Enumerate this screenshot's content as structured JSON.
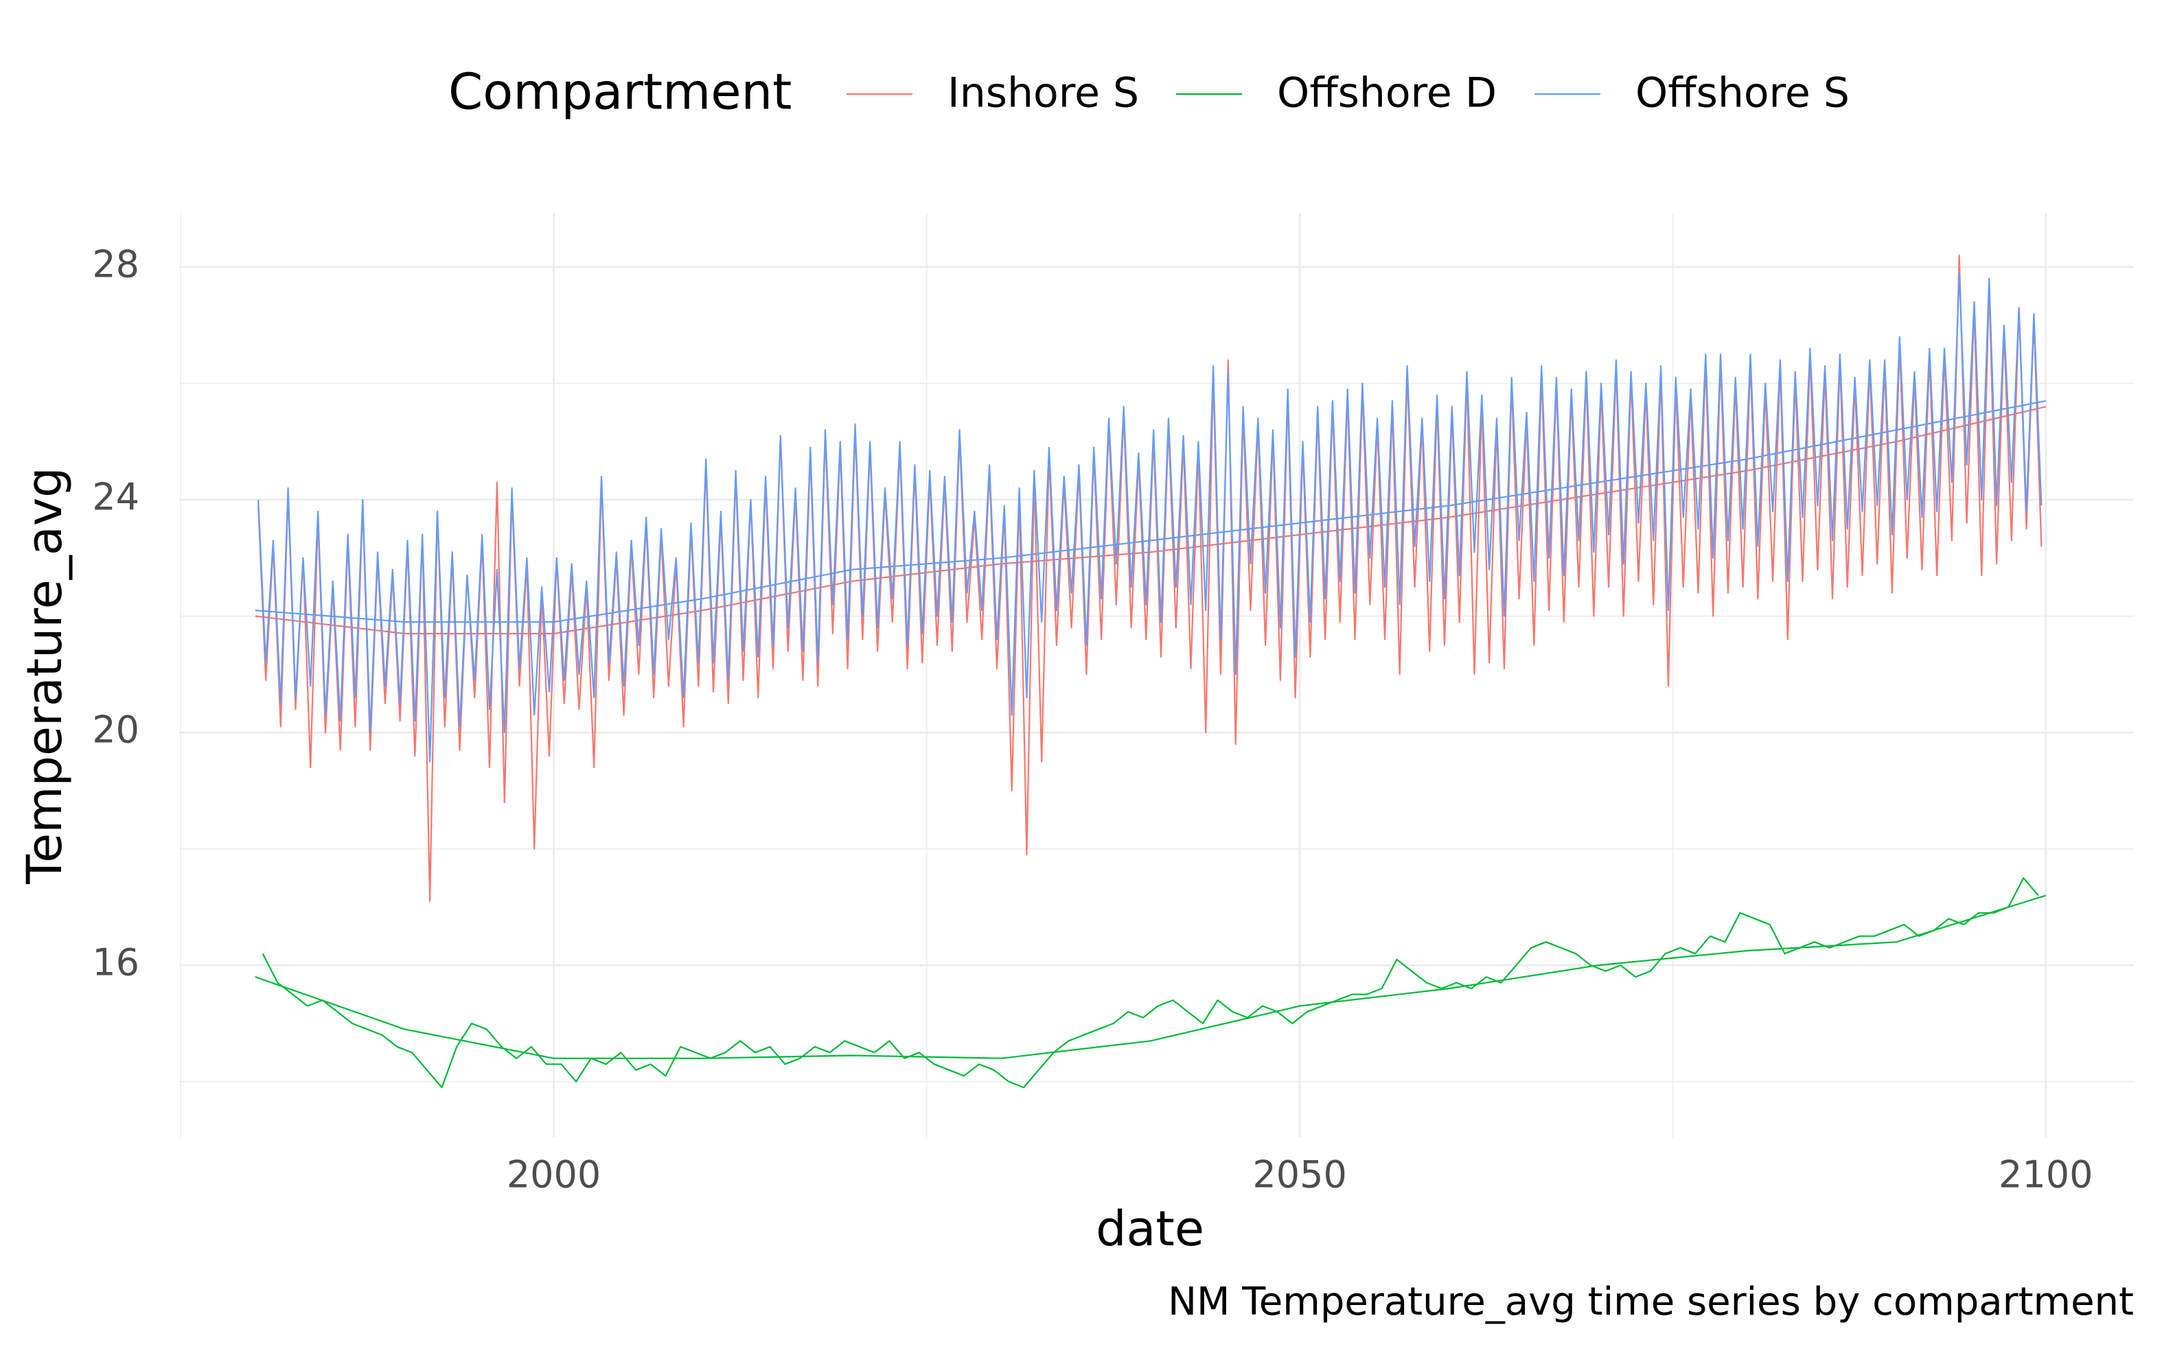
{
  "chart_data": {
    "type": "line",
    "legend_title": "Compartment",
    "xlabel": "date",
    "ylabel": "Temperature_avg",
    "caption": "NM Temperature_avg time series by compartment",
    "xlim": [
      1974.9,
      2105.9
    ],
    "ylim": [
      13.04,
      28.92
    ],
    "xticks": [
      2000,
      2050,
      2100
    ],
    "yticks": [
      16,
      20,
      24,
      28
    ],
    "minor_xticks": [
      1975,
      2025,
      2075
    ],
    "minor_yticks": [
      14,
      18,
      22,
      26
    ],
    "grid": true,
    "legend_position": "top",
    "x": [
      1980.2,
      1980.7,
      1981.2,
      1981.7,
      1982.2,
      1982.7,
      1983.2,
      1983.7,
      1984.2,
      1984.7,
      1985.2,
      1985.7,
      1986.2,
      1986.7,
      1987.2,
      1987.7,
      1988.2,
      1988.7,
      1989.2,
      1989.7,
      1990.2,
      1990.7,
      1991.2,
      1991.7,
      1992.2,
      1992.7,
      1993.2,
      1993.7,
      1994.2,
      1994.7,
      1995.2,
      1995.7,
      1996.2,
      1996.7,
      1997.2,
      1997.7,
      1998.2,
      1998.7,
      1999.2,
      1999.7,
      2000.2,
      2000.7,
      2001.2,
      2001.7,
      2002.2,
      2002.7,
      2003.2,
      2003.7,
      2004.2,
      2004.7,
      2005.2,
      2005.7,
      2006.2,
      2006.7,
      2007.2,
      2007.7,
      2008.2,
      2008.7,
      2009.2,
      2009.7,
      2010.2,
      2010.7,
      2011.2,
      2011.7,
      2012.2,
      2012.7,
      2013.2,
      2013.7,
      2014.2,
      2014.7,
      2015.2,
      2015.7,
      2016.2,
      2016.7,
      2017.2,
      2017.7,
      2018.2,
      2018.7,
      2019.2,
      2019.7,
      2020.2,
      2020.7,
      2021.2,
      2021.7,
      2022.2,
      2022.7,
      2023.2,
      2023.7,
      2024.2,
      2024.7,
      2025.2,
      2025.7,
      2026.2,
      2026.7,
      2027.2,
      2027.7,
      2028.2,
      2028.7,
      2029.2,
      2029.7,
      2030.2,
      2030.7,
      2031.2,
      2031.7,
      2032.2,
      2032.7,
      2033.2,
      2033.7,
      2034.2,
      2034.7,
      2035.2,
      2035.7,
      2036.2,
      2036.7,
      2037.2,
      2037.7,
      2038.2,
      2038.7,
      2039.2,
      2039.7,
      2040.2,
      2040.7,
      2041.2,
      2041.7,
      2042.2,
      2042.7,
      2043.2,
      2043.7,
      2044.2,
      2044.7,
      2045.2,
      2045.7,
      2046.2,
      2046.7,
      2047.2,
      2047.7,
      2048.2,
      2048.7,
      2049.2,
      2049.7,
      2050.2,
      2050.7,
      2051.2,
      2051.7,
      2052.2,
      2052.7,
      2053.2,
      2053.7,
      2054.2,
      2054.7,
      2055.2,
      2055.7,
      2056.2,
      2056.7,
      2057.2,
      2057.7,
      2058.2,
      2058.7,
      2059.2,
      2059.7,
      2060.2,
      2060.7,
      2061.2,
      2061.7,
      2062.2,
      2062.7,
      2063.2,
      2063.7,
      2064.2,
      2064.7,
      2065.2,
      2065.7,
      2066.2,
      2066.7,
      2067.2,
      2067.7,
      2068.2,
      2068.7,
      2069.2,
      2069.7,
      2070.2,
      2070.7,
      2071.2,
      2071.7,
      2072.2,
      2072.7,
      2073.2,
      2073.7,
      2074.2,
      2074.7,
      2075.2,
      2075.7,
      2076.2,
      2076.7,
      2077.2,
      2077.7,
      2078.2,
      2078.7,
      2079.2,
      2079.7,
      2080.2,
      2080.7,
      2081.2,
      2081.7,
      2082.2,
      2082.7,
      2083.2,
      2083.7,
      2084.2,
      2084.7,
      2085.2,
      2085.7,
      2086.2,
      2086.7,
      2087.2,
      2087.7,
      2088.2,
      2088.7,
      2089.2,
      2089.7,
      2090.2,
      2090.7,
      2091.2,
      2091.7,
      2092.2,
      2092.7,
      2093.2,
      2093.7,
      2094.2,
      2094.7,
      2095.2,
      2095.7,
      2096.2,
      2096.7,
      2097.2,
      2097.7,
      2098.2,
      2098.7,
      2099.2,
      2099.7
    ],
    "trend_x": [
      1980,
      1990,
      2000,
      2010,
      2020,
      2030,
      2040,
      2050,
      2060,
      2070,
      2080,
      2090,
      2100
    ],
    "series": [
      {
        "name": "Inshore S",
        "color": "#F8766D",
        "values": [
          23.9,
          20.9,
          23.2,
          20.1,
          24.1,
          20.4,
          23.0,
          19.4,
          23.7,
          20.0,
          22.5,
          19.7,
          23.3,
          20.1,
          23.9,
          19.7,
          23.0,
          20.5,
          22.7,
          20.2,
          23.2,
          19.6,
          23.4,
          17.1,
          23.8,
          20.1,
          23.0,
          19.7,
          22.7,
          20.6,
          23.3,
          19.4,
          24.3,
          18.8,
          24.1,
          20.8,
          22.9,
          18.0,
          22.4,
          19.6,
          23.0,
          20.5,
          22.8,
          20.4,
          22.5,
          19.4,
          24.3,
          20.9,
          23.0,
          20.3,
          23.2,
          21.0,
          23.6,
          20.6,
          23.4,
          20.8,
          22.9,
          20.1,
          23.5,
          20.8,
          24.6,
          20.7,
          23.7,
          20.5,
          24.4,
          20.9,
          24.0,
          20.6,
          24.3,
          21.1,
          25.1,
          21.4,
          24.1,
          20.9,
          24.8,
          20.8,
          25.1,
          21.7,
          24.9,
          21.1,
          25.2,
          21.6,
          24.9,
          21.4,
          24.1,
          21.9,
          24.9,
          21.1,
          24.5,
          21.2,
          24.4,
          21.5,
          24.3,
          21.4,
          25.1,
          21.9,
          23.7,
          21.6,
          24.5,
          21.1,
          23.8,
          19.0,
          24.1,
          17.9,
          24.4,
          19.5,
          24.8,
          21.5,
          24.3,
          21.8,
          24.5,
          21.0,
          24.8,
          21.6,
          25.3,
          22.2,
          25.5,
          21.8,
          24.7,
          21.6,
          25.1,
          21.3,
          25.3,
          21.8,
          25.0,
          21.1,
          24.9,
          20.0,
          26.2,
          21.0,
          26.4,
          19.8,
          25.5,
          22.1,
          25.3,
          21.5,
          25.1,
          20.9,
          25.8,
          20.6,
          24.9,
          21.3,
          25.5,
          21.6,
          25.6,
          21.9,
          25.8,
          21.6,
          25.9,
          22.2,
          25.3,
          21.6,
          25.6,
          21.0,
          26.2,
          22.5,
          25.3,
          21.4,
          25.7,
          21.5,
          25.5,
          21.9,
          26.1,
          21.0,
          25.7,
          21.2,
          25.3,
          21.1,
          26.0,
          22.3,
          25.4,
          21.5,
          26.2,
          22.1,
          26.0,
          21.9,
          25.8,
          22.5,
          26.1,
          22.0,
          25.9,
          22.5,
          26.3,
          22.0,
          26.1,
          22.6,
          25.9,
          22.2,
          26.2,
          20.8,
          26.0,
          22.5,
          25.8,
          22.4,
          26.4,
          22.0,
          26.4,
          22.4,
          26.0,
          22.5,
          26.4,
          22.3,
          25.9,
          22.6,
          26.3,
          21.6,
          26.1,
          22.6,
          26.5,
          22.8,
          26.2,
          22.3,
          26.4,
          22.5,
          26.0,
          22.7,
          26.3,
          22.9,
          26.3,
          22.4,
          26.7,
          23.0,
          26.1,
          22.8,
          26.5,
          22.7,
          26.5,
          23.3,
          28.2,
          23.6,
          27.3,
          22.7,
          27.7,
          22.9,
          26.9,
          23.3,
          27.3,
          23.5,
          27.1,
          23.2
        ],
        "trend": [
          22.0,
          21.7,
          21.7,
          22.1,
          22.6,
          22.9,
          23.1,
          23.4,
          23.7,
          24.1,
          24.5,
          25.0,
          25.6
        ]
      },
      {
        "name": "Offshore D",
        "color": "#00BA38",
        "x": [
          1980.5,
          1981.5,
          1982.5,
          1983.5,
          1984.5,
          1985.5,
          1986.5,
          1987.5,
          1988.5,
          1989.5,
          1990.5,
          1991.5,
          1992.5,
          1993.5,
          1994.5,
          1995.5,
          1996.5,
          1997.5,
          1998.5,
          1999.5,
          2000.5,
          2001.5,
          2002.5,
          2003.5,
          2004.5,
          2005.5,
          2006.5,
          2007.5,
          2008.5,
          2009.5,
          2010.5,
          2011.5,
          2012.5,
          2013.5,
          2014.5,
          2015.5,
          2016.5,
          2017.5,
          2018.5,
          2019.5,
          2020.5,
          2021.5,
          2022.5,
          2023.5,
          2024.5,
          2025.5,
          2026.5,
          2027.5,
          2028.5,
          2029.5,
          2030.5,
          2031.5,
          2032.5,
          2033.5,
          2034.5,
          2035.5,
          2036.5,
          2037.5,
          2038.5,
          2039.5,
          2040.5,
          2041.5,
          2042.5,
          2043.5,
          2044.5,
          2045.5,
          2046.5,
          2047.5,
          2048.5,
          2049.5,
          2050.5,
          2051.5,
          2052.5,
          2053.5,
          2054.5,
          2055.5,
          2056.5,
          2057.5,
          2058.5,
          2059.5,
          2060.5,
          2061.5,
          2062.5,
          2063.5,
          2064.5,
          2065.5,
          2066.5,
          2067.5,
          2068.5,
          2069.5,
          2070.5,
          2071.5,
          2072.5,
          2073.5,
          2074.5,
          2075.5,
          2076.5,
          2077.5,
          2078.5,
          2079.5,
          2080.5,
          2081.5,
          2082.5,
          2083.5,
          2084.5,
          2085.5,
          2086.5,
          2087.5,
          2088.5,
          2089.5,
          2090.5,
          2091.5,
          2092.5,
          2093.5,
          2094.5,
          2095.5,
          2096.5,
          2097.5,
          2098.5,
          2099.5
        ],
        "values": [
          16.2,
          15.7,
          15.5,
          15.3,
          15.4,
          15.2,
          15.0,
          14.9,
          14.8,
          14.6,
          14.5,
          14.2,
          13.9,
          14.6,
          15.0,
          14.9,
          14.6,
          14.4,
          14.6,
          14.3,
          14.3,
          14.0,
          14.4,
          14.3,
          14.5,
          14.2,
          14.3,
          14.1,
          14.6,
          14.5,
          14.4,
          14.5,
          14.7,
          14.5,
          14.6,
          14.3,
          14.4,
          14.6,
          14.5,
          14.7,
          14.6,
          14.5,
          14.7,
          14.4,
          14.5,
          14.3,
          14.2,
          14.1,
          14.3,
          14.2,
          14.0,
          13.9,
          14.2,
          14.5,
          14.7,
          14.8,
          14.9,
          15.0,
          15.2,
          15.1,
          15.3,
          15.4,
          15.2,
          15.0,
          15.4,
          15.2,
          15.1,
          15.3,
          15.2,
          15.0,
          15.2,
          15.3,
          15.4,
          15.5,
          15.5,
          15.6,
          16.1,
          15.9,
          15.7,
          15.6,
          15.7,
          15.6,
          15.8,
          15.7,
          16.0,
          16.3,
          16.4,
          16.3,
          16.2,
          16.0,
          15.9,
          16.0,
          15.8,
          15.9,
          16.2,
          16.3,
          16.2,
          16.5,
          16.4,
          16.9,
          16.8,
          16.7,
          16.2,
          16.3,
          16.4,
          16.3,
          16.4,
          16.5,
          16.5,
          16.6,
          16.7,
          16.5,
          16.6,
          16.8,
          16.7,
          16.9,
          16.9,
          17.0,
          17.5,
          17.2
        ],
        "trend": [
          15.8,
          14.9,
          14.4,
          14.4,
          14.45,
          14.4,
          14.7,
          15.3,
          15.6,
          16.0,
          16.25,
          16.4,
          17.2
        ]
      },
      {
        "name": "Offshore S",
        "color": "#619CFF",
        "values": [
          24.0,
          21.2,
          23.3,
          20.5,
          24.2,
          20.6,
          23.0,
          20.8,
          23.8,
          20.3,
          22.6,
          20.2,
          23.4,
          20.6,
          24.0,
          20.0,
          23.1,
          20.8,
          22.8,
          20.5,
          23.3,
          20.2,
          23.4,
          19.5,
          23.8,
          20.6,
          23.1,
          20.1,
          22.7,
          20.9,
          23.4,
          20.4,
          22.8,
          20.0,
          24.2,
          21.1,
          23.0,
          20.3,
          22.5,
          20.7,
          23.0,
          20.9,
          22.9,
          21.0,
          22.6,
          20.6,
          24.4,
          21.2,
          23.1,
          20.8,
          23.3,
          21.5,
          23.7,
          21.0,
          23.5,
          21.6,
          23.0,
          20.6,
          23.6,
          21.2,
          24.7,
          21.2,
          23.8,
          20.9,
          24.5,
          21.4,
          24.0,
          21.3,
          24.4,
          21.5,
          25.1,
          21.8,
          24.2,
          21.4,
          24.9,
          21.2,
          25.2,
          22.2,
          25.0,
          21.6,
          25.3,
          22.0,
          25.0,
          21.8,
          24.2,
          22.3,
          25.0,
          21.5,
          24.6,
          21.7,
          24.5,
          22.0,
          24.4,
          21.9,
          25.2,
          22.4,
          23.8,
          22.1,
          24.6,
          21.6,
          23.9,
          20.3,
          24.2,
          20.6,
          24.5,
          21.9,
          24.9,
          22.1,
          24.4,
          22.4,
          24.6,
          21.5,
          24.9,
          22.3,
          25.4,
          22.9,
          25.6,
          22.5,
          24.8,
          22.2,
          25.2,
          21.9,
          25.4,
          22.5,
          25.1,
          22.2,
          25.0,
          22.1,
          26.3,
          21.6,
          26.2,
          21.0,
          25.6,
          22.9,
          25.4,
          22.4,
          25.2,
          21.8,
          25.9,
          21.3,
          25.0,
          21.9,
          25.6,
          22.3,
          25.7,
          22.6,
          25.9,
          22.4,
          26.0,
          23.0,
          25.4,
          22.5,
          25.7,
          22.2,
          26.3,
          23.2,
          25.4,
          22.6,
          25.8,
          22.3,
          25.6,
          22.7,
          26.2,
          23.1,
          25.8,
          22.8,
          25.4,
          22.0,
          26.1,
          23.3,
          25.5,
          22.6,
          26.3,
          23.0,
          26.1,
          22.7,
          25.9,
          23.3,
          26.2,
          23.1,
          26.0,
          23.4,
          26.4,
          22.9,
          26.2,
          23.6,
          26.0,
          23.3,
          26.3,
          22.1,
          26.1,
          23.7,
          25.9,
          23.5,
          26.5,
          23.0,
          26.5,
          23.3,
          26.1,
          23.5,
          26.5,
          23.2,
          26.0,
          23.8,
          26.4,
          22.6,
          26.2,
          23.7,
          26.6,
          23.9,
          26.3,
          23.3,
          26.5,
          23.5,
          26.1,
          23.8,
          26.4,
          23.9,
          26.4,
          23.4,
          26.8,
          24.0,
          26.2,
          23.7,
          26.6,
          23.8,
          26.6,
          24.3,
          27.9,
          24.6,
          27.4,
          24.0,
          27.8,
          23.9,
          27.0,
          24.3,
          27.3,
          23.8,
          27.2,
          23.9
        ],
        "trend": [
          22.1,
          21.9,
          21.9,
          22.3,
          22.8,
          23.0,
          23.3,
          23.6,
          23.9,
          24.3,
          24.7,
          25.2,
          25.7
        ]
      }
    ]
  }
}
